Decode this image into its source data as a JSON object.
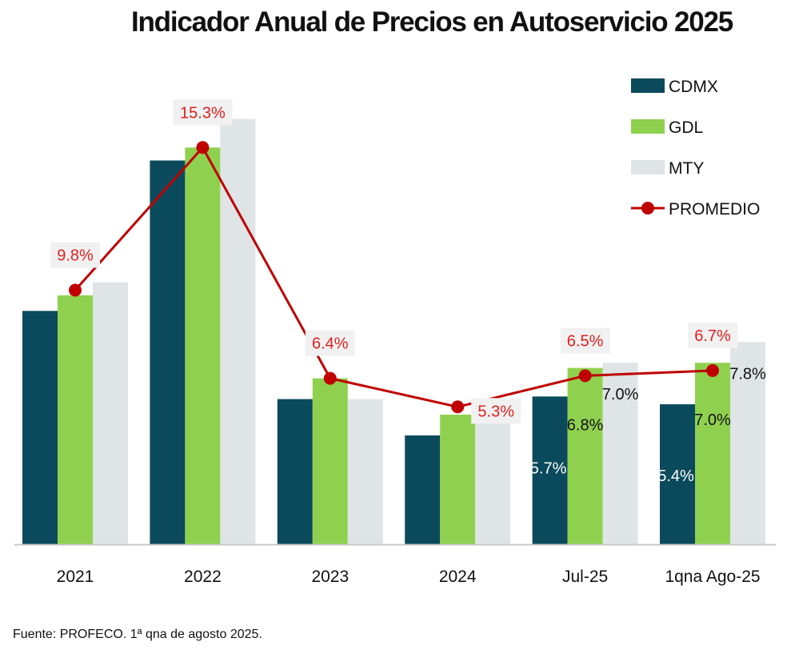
{
  "chart_data": {
    "type": "bar",
    "title": "Indicador Anual de Precios en Autoservicio 2025",
    "categories": [
      "2021",
      "2022",
      "2023",
      "2024",
      "Jul-25",
      "1qna Ago-25"
    ],
    "series": [
      {
        "name": "CDMX",
        "kind": "bar",
        "color": "#0b4a5c",
        "values": [
          9.0,
          14.8,
          5.6,
          4.2,
          5.7,
          5.4
        ]
      },
      {
        "name": "GDL",
        "kind": "bar",
        "color": "#8fd14f",
        "values": [
          9.6,
          15.3,
          6.4,
          5.0,
          6.8,
          7.0
        ]
      },
      {
        "name": "MTY",
        "kind": "bar",
        "color": "#dfe4e6",
        "values": [
          10.1,
          16.4,
          5.6,
          5.0,
          7.0,
          7.8
        ]
      },
      {
        "name": "PROMEDIO",
        "kind": "line",
        "color": "#c00000",
        "values": [
          9.8,
          15.3,
          6.4,
          5.3,
          6.5,
          6.7
        ]
      }
    ],
    "average_labels": [
      "9.8%",
      "15.3%",
      "6.4%",
      "5.3%",
      "6.5%",
      "6.7%"
    ],
    "bar_labels": [
      {
        "category_index": 4,
        "series": "CDMX",
        "text": "5.7%",
        "color": "#ffffff"
      },
      {
        "category_index": 4,
        "series": "GDL",
        "text": "6.8%",
        "color": "#111111"
      },
      {
        "category_index": 4,
        "series": "MTY",
        "text": "7.0%",
        "color": "#111111"
      },
      {
        "category_index": 5,
        "series": "CDMX",
        "text": "5.4%",
        "color": "#ffffff"
      },
      {
        "category_index": 5,
        "series": "GDL",
        "text": "7.0%",
        "color": "#111111"
      },
      {
        "category_index": 5,
        "series": "MTY",
        "text": "7.8%",
        "color": "#111111"
      }
    ],
    "ylim": [
      0,
      20
    ],
    "grid": false,
    "legend_position": "top-right",
    "source": "Fuente: PROFECO. 1ª qna de agosto 2025."
  }
}
